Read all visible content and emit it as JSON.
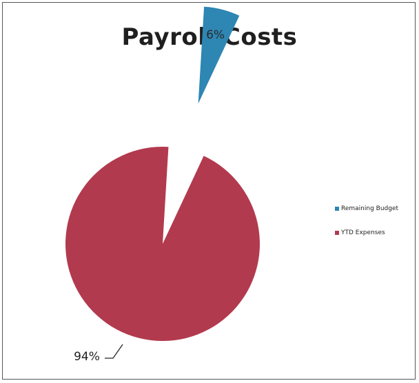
{
  "chart_data": {
    "type": "pie",
    "title": "Payroll Costs",
    "categories": [
      "Remaining Budget",
      "YTD Expenses"
    ],
    "values": [
      6,
      94
    ],
    "data_labels": [
      "6%",
      "94%"
    ],
    "colors": [
      "#2e86b3",
      "#b23a4e"
    ],
    "exploded_slice": "Remaining Budget",
    "legend_position": "right",
    "legend": [
      {
        "label": "Remaining Budget",
        "color": "#2e86b3"
      },
      {
        "label": "YTD Expenses",
        "color": "#b23a4e"
      }
    ]
  }
}
